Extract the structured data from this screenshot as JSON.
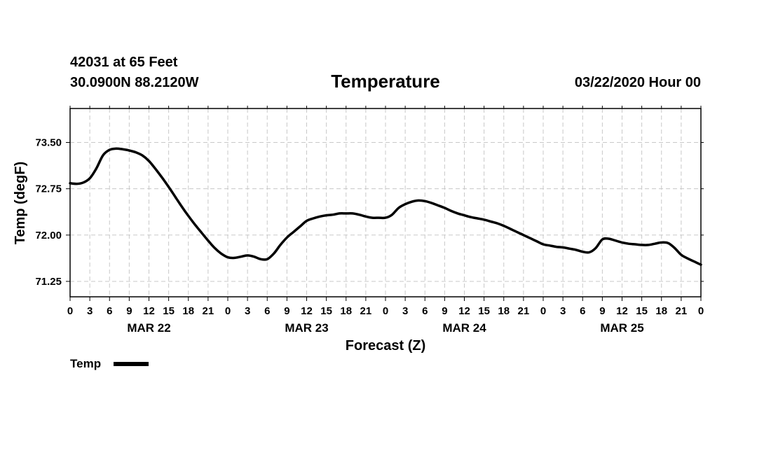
{
  "header": {
    "station": "42031 at 65 Feet",
    "location": "30.0900N 88.2120W",
    "datetime": "03/22/2020 Hour 00"
  },
  "chart_data": {
    "type": "line",
    "title": "Temperature",
    "xlabel": "Forecast (Z)",
    "ylabel": "Temp (degF)",
    "ylim": [
      71.0,
      74.05
    ],
    "yticks": [
      71.25,
      72.0,
      72.75,
      73.5
    ],
    "ytick_labels": [
      "71.25",
      "72.00",
      "72.75",
      "73.50"
    ],
    "xlim": [
      0,
      96
    ],
    "xtick_hours": [
      0,
      3,
      6,
      9,
      12,
      15,
      18,
      21,
      24,
      27,
      30,
      33,
      36,
      39,
      42,
      45,
      48,
      51,
      54,
      57,
      60,
      63,
      66,
      69,
      72,
      75,
      78,
      81,
      84,
      87,
      90,
      93,
      96
    ],
    "xtick_labels": [
      "0",
      "3",
      "6",
      "9",
      "12",
      "15",
      "18",
      "21",
      "0",
      "3",
      "6",
      "9",
      "12",
      "15",
      "18",
      "21",
      "0",
      "3",
      "6",
      "9",
      "12",
      "15",
      "18",
      "21",
      "0",
      "3",
      "6",
      "9",
      "12",
      "15",
      "18",
      "21",
      "0"
    ],
    "day_labels": [
      {
        "label": "MAR 22",
        "hour": 12
      },
      {
        "label": "MAR 23",
        "hour": 36
      },
      {
        "label": "MAR 24",
        "hour": 60
      },
      {
        "label": "MAR 25",
        "hour": 84
      }
    ],
    "grid": true,
    "series": [
      {
        "name": "Temp",
        "x": [
          0,
          1,
          2,
          3,
          4,
          5,
          6,
          7,
          8,
          9,
          10,
          11,
          12,
          13,
          14,
          15,
          16,
          17,
          18,
          19,
          20,
          21,
          22,
          23,
          24,
          25,
          26,
          27,
          28,
          29,
          30,
          31,
          32,
          33,
          34,
          35,
          36,
          37,
          38,
          39,
          40,
          41,
          42,
          43,
          44,
          45,
          46,
          47,
          48,
          49,
          50,
          51,
          52,
          53,
          54,
          55,
          56,
          57,
          58,
          59,
          60,
          61,
          62,
          63,
          64,
          65,
          66,
          67,
          68,
          69,
          70,
          71,
          72,
          73,
          74,
          75,
          76,
          77,
          78,
          79,
          80,
          81,
          82,
          83,
          84,
          85,
          86,
          87,
          88,
          89,
          90,
          91,
          92,
          93,
          94,
          95,
          96
        ],
        "values": [
          72.84,
          72.83,
          72.85,
          72.92,
          73.08,
          73.29,
          73.38,
          73.4,
          73.39,
          73.37,
          73.34,
          73.29,
          73.2,
          73.07,
          72.93,
          72.78,
          72.62,
          72.46,
          72.31,
          72.17,
          72.04,
          71.91,
          71.79,
          71.7,
          71.64,
          71.63,
          71.65,
          71.67,
          71.65,
          71.61,
          71.61,
          71.7,
          71.84,
          71.96,
          72.05,
          72.14,
          72.23,
          72.27,
          72.3,
          72.32,
          72.33,
          72.35,
          72.35,
          72.35,
          72.33,
          72.3,
          72.28,
          72.28,
          72.28,
          72.33,
          72.44,
          72.5,
          72.54,
          72.56,
          72.55,
          72.52,
          72.48,
          72.44,
          72.39,
          72.35,
          72.32,
          72.29,
          72.27,
          72.25,
          72.22,
          72.19,
          72.15,
          72.1,
          72.05,
          72.0,
          71.95,
          71.9,
          71.85,
          71.83,
          71.81,
          71.8,
          71.78,
          71.76,
          71.73,
          71.72,
          71.79,
          71.93,
          71.94,
          71.91,
          71.88,
          71.86,
          71.85,
          71.84,
          71.84,
          71.86,
          71.88,
          71.87,
          71.79,
          71.68,
          71.62,
          71.57,
          71.52
        ]
      }
    ]
  },
  "legend": {
    "label": "Temp",
    "color": "#000000"
  }
}
